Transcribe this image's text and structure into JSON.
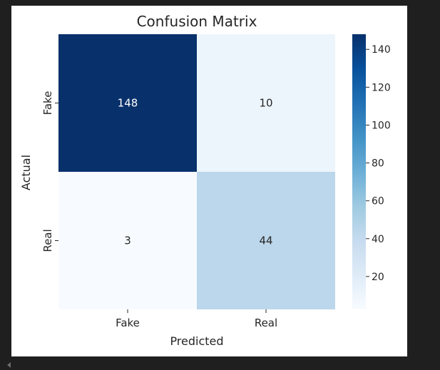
{
  "chart_data": {
    "type": "heatmap",
    "title": "Confusion Matrix",
    "xlabel": "Predicted",
    "ylabel": "Actual",
    "x_categories": [
      "Fake",
      "Real"
    ],
    "y_categories": [
      "Fake",
      "Real"
    ],
    "values": [
      [
        148,
        10
      ],
      [
        3,
        44
      ]
    ],
    "annotations": [
      [
        "148",
        "10"
      ],
      [
        "3",
        "44"
      ]
    ],
    "colormap": "Blues",
    "colorbar": {
      "range": [
        3,
        148
      ],
      "ticks": [
        20,
        40,
        60,
        80,
        100,
        120,
        140
      ],
      "tick_labels": [
        "20",
        "40",
        "60",
        "80",
        "100",
        "120",
        "140"
      ]
    },
    "colors": {
      "low": "#f7fbff",
      "high": "#08306b",
      "annotation_dark_bg": "#ffffff",
      "annotation_light_bg": "#262626",
      "page_background": "#1f1f1f",
      "figure_background": "#ffffff"
    }
  }
}
